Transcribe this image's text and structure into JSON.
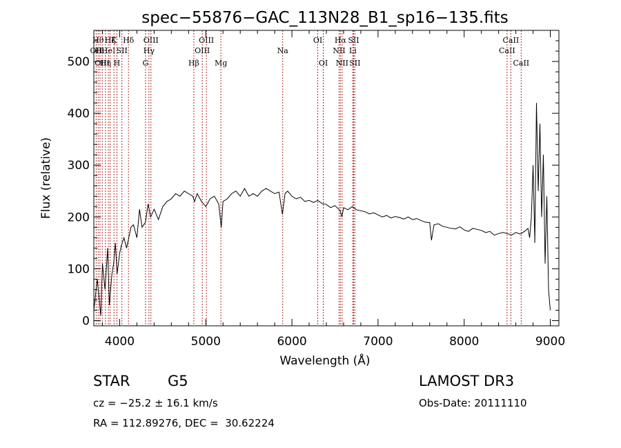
{
  "chart_data": {
    "type": "line",
    "title": "spec−55876−GAC_113N28_B1_sp16−135.fits",
    "xlabel": "Wavelength (Å)",
    "ylabel": "Flux (relative)",
    "xlim": [
      3700,
      9100
    ],
    "ylim": [
      -10,
      560
    ],
    "xticks": [
      4000,
      5000,
      6000,
      7000,
      8000,
      9000
    ],
    "yticks": [
      0,
      100,
      200,
      300,
      400,
      500
    ],
    "grid": false,
    "legend": "none",
    "line_color": "#000000",
    "marker_color": "#b22222",
    "series": [
      {
        "x": [
          3700,
          3740,
          3780,
          3800,
          3830,
          3860,
          3880,
          3910,
          3930,
          3950,
          3970,
          4000,
          4020,
          4050,
          4080,
          4100,
          4130,
          4160,
          4200,
          4230,
          4260,
          4300,
          4330,
          4360,
          4400,
          4450,
          4500,
          4550,
          4600,
          4650,
          4700,
          4750,
          4800,
          4850,
          4870,
          4900,
          4950,
          5000,
          5050,
          5100,
          5150,
          5180,
          5200,
          5250,
          5300,
          5350,
          5400,
          5450,
          5500,
          5550,
          5600,
          5650,
          5700,
          5750,
          5800,
          5850,
          5890,
          5920,
          5950,
          6000,
          6050,
          6100,
          6150,
          6200,
          6250,
          6300,
          6350,
          6400,
          6450,
          6500,
          6560,
          6580,
          6600,
          6650,
          6700,
          6750,
          6800,
          6850,
          6900,
          6950,
          7000,
          7050,
          7100,
          7150,
          7200,
          7250,
          7300,
          7350,
          7400,
          7450,
          7500,
          7550,
          7600,
          7620,
          7650,
          7700,
          7750,
          7800,
          7850,
          7900,
          7950,
          8000,
          8050,
          8100,
          8150,
          8200,
          8250,
          8300,
          8350,
          8400,
          8450,
          8500,
          8550,
          8600,
          8650,
          8700,
          8740,
          8760,
          8780,
          8800,
          8820,
          8840,
          8860,
          8880,
          8900,
          8920,
          8940,
          8960,
          8980,
          9000
        ],
        "y": [
          20,
          80,
          10,
          110,
          60,
          140,
          30,
          90,
          110,
          150,
          90,
          130,
          145,
          160,
          140,
          155,
          180,
          185,
          160,
          215,
          180,
          190,
          225,
          200,
          215,
          195,
          220,
          230,
          235,
          245,
          240,
          250,
          245,
          240,
          230,
          245,
          230,
          220,
          235,
          240,
          225,
          180,
          230,
          235,
          245,
          250,
          240,
          255,
          240,
          245,
          240,
          250,
          255,
          250,
          245,
          248,
          205,
          245,
          250,
          240,
          235,
          238,
          230,
          232,
          228,
          232,
          226,
          224,
          218,
          222,
          212,
          200,
          218,
          214,
          220,
          214,
          212,
          210,
          206,
          208,
          204,
          200,
          203,
          198,
          201,
          199,
          196,
          200,
          195,
          197,
          193,
          190,
          189,
          155,
          185,
          187,
          182,
          180,
          178,
          177,
          181,
          175,
          172,
          178,
          176,
          174,
          170,
          172,
          165,
          168,
          170,
          168,
          165,
          170,
          167,
          172,
          178,
          160,
          200,
          300,
          150,
          420,
          250,
          380,
          200,
          320,
          110,
          240,
          60,
          20
        ]
      }
    ],
    "line_markers": [
      {
        "x": 3727,
        "label": "OII",
        "row": 2
      },
      {
        "x": 3750,
        "label": "Hθ",
        "row": 1
      },
      {
        "x": 3771,
        "label": "Hι",
        "row": 2
      },
      {
        "x": 3798,
        "label": "OIII",
        "row": 3
      },
      {
        "x": 3835,
        "label": "Hη",
        "row": 3
      },
      {
        "x": 3869,
        "label": "HeI",
        "row": 2
      },
      {
        "x": 3889,
        "label": "Hζ",
        "row": 1
      },
      {
        "x": 3934,
        "label": "K",
        "row": 1
      },
      {
        "x": 3968,
        "label": "H",
        "row": 3
      },
      {
        "x": 4026,
        "label": "SII",
        "row": 2
      },
      {
        "x": 4102,
        "label": "Hδ",
        "row": 1
      },
      {
        "x": 4300,
        "label": "G",
        "row": 3
      },
      {
        "x": 4340,
        "label": "Hγ",
        "row": 2
      },
      {
        "x": 4363,
        "label": "OIII",
        "row": 1
      },
      {
        "x": 4861,
        "label": "Hβ",
        "row": 3
      },
      {
        "x": 4959,
        "label": "OIII",
        "row": 2
      },
      {
        "x": 5007,
        "label": "OIII",
        "row": 1
      },
      {
        "x": 5175,
        "label": "Mg",
        "row": 3
      },
      {
        "x": 5893,
        "label": "Na",
        "row": 2
      },
      {
        "x": 6300,
        "label": "OI",
        "row": 1
      },
      {
        "x": 6364,
        "label": "OI",
        "row": 3
      },
      {
        "x": 6548,
        "label": "NII",
        "row": 2
      },
      {
        "x": 6563,
        "label": "Hα",
        "row": 1
      },
      {
        "x": 6583,
        "label": "NII",
        "row": 3
      },
      {
        "x": 6707,
        "label": "Li",
        "row": 2
      },
      {
        "x": 6716,
        "label": "SII",
        "row": 1
      },
      {
        "x": 6731,
        "label": "SII",
        "row": 3
      },
      {
        "x": 8498,
        "label": "CaII",
        "row": 2
      },
      {
        "x": 8542,
        "label": "CaII",
        "row": 1
      },
      {
        "x": 8662,
        "label": "CaII",
        "row": 3
      }
    ]
  },
  "info": {
    "class_label": "STAR",
    "subclass": "G5",
    "survey": "LAMOST DR3",
    "redshift": "cz = −25.2 ± 16.1 km/s",
    "obs_date": "Obs-Date: 20111110",
    "coords": "RA = 112.89276, DEC =  30.62224"
  }
}
